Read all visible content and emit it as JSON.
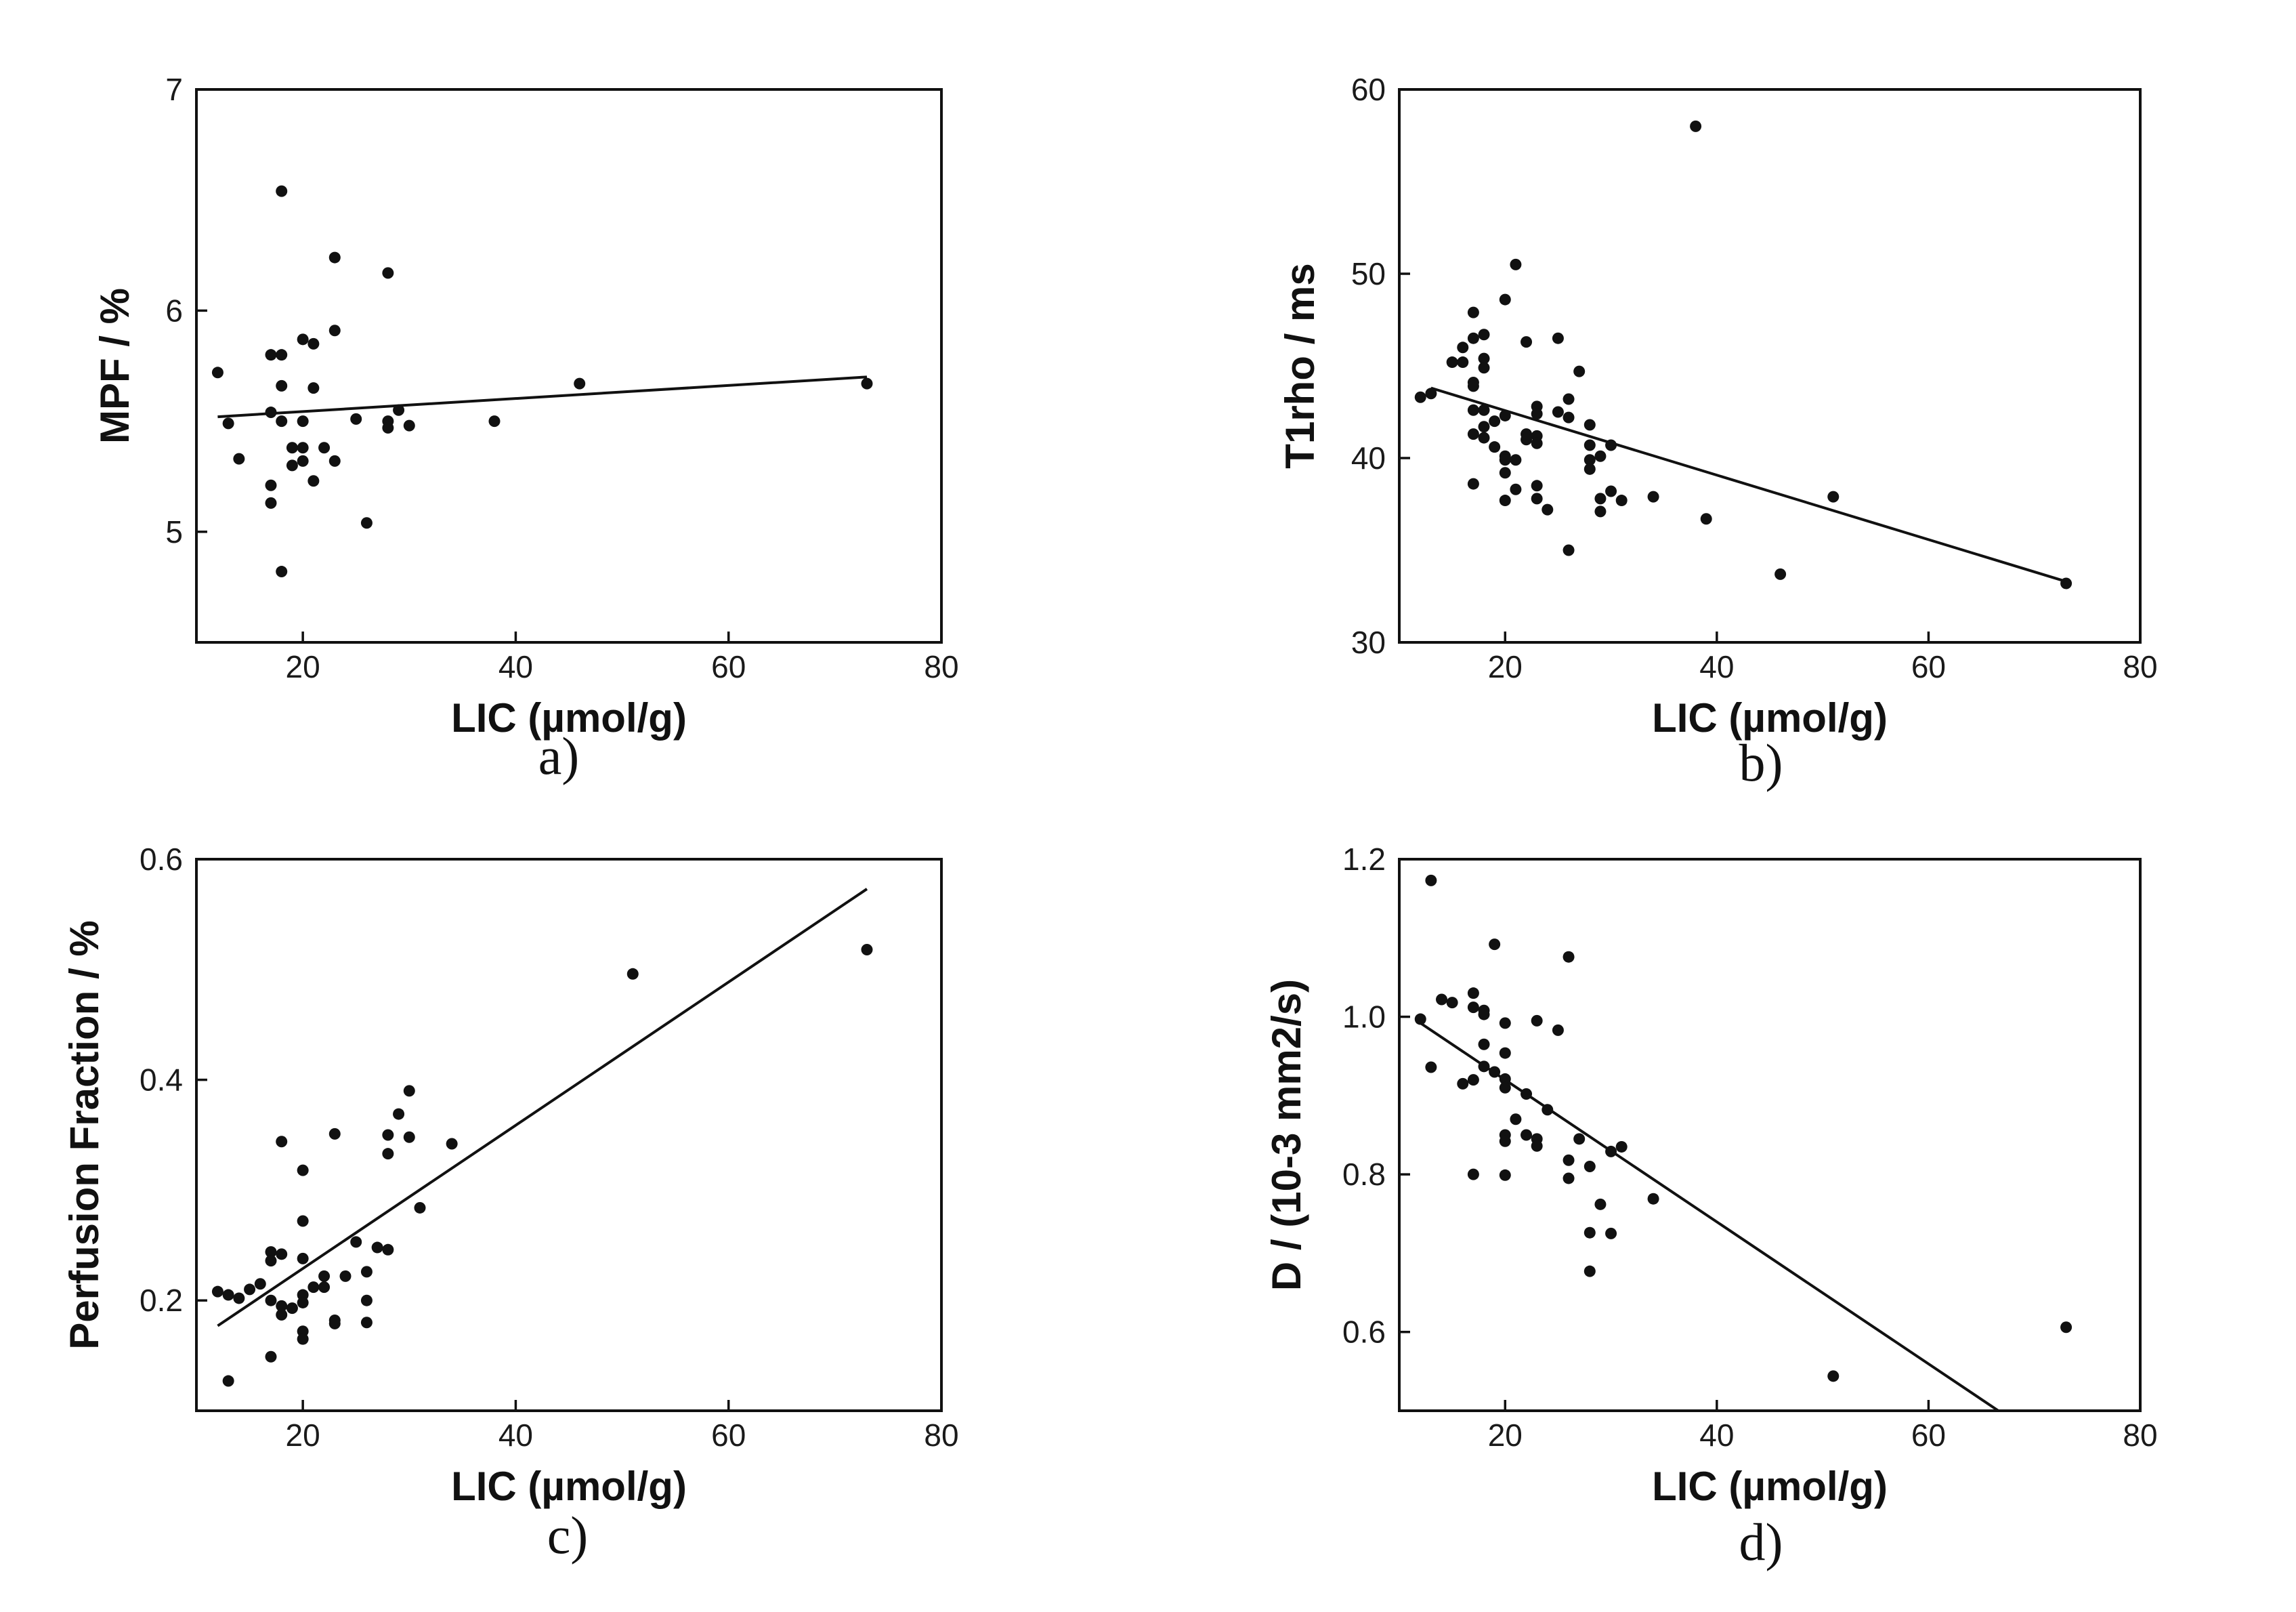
{
  "chart_data": [
    {
      "type": "scatter",
      "panel": "a)",
      "xlabel": "LIC (µmol/g)",
      "ylabel": "MPF / %",
      "xlim": [
        10,
        80
      ],
      "ylim": [
        4.5,
        7
      ],
      "xticks": [
        20,
        40,
        60,
        80
      ],
      "yticks": [
        5,
        6,
        7
      ],
      "points": [
        [
          12,
          5.72
        ],
        [
          13,
          5.49
        ],
        [
          14,
          5.33
        ],
        [
          17,
          5.54
        ],
        [
          17,
          5.21
        ],
        [
          17,
          5.13
        ],
        [
          17,
          5.8
        ],
        [
          18,
          6.54
        ],
        [
          18,
          5.8
        ],
        [
          18,
          5.66
        ],
        [
          18,
          5.5
        ],
        [
          18,
          4.82
        ],
        [
          19,
          5.38
        ],
        [
          19,
          5.3
        ],
        [
          20,
          5.87
        ],
        [
          20,
          5.5
        ],
        [
          20,
          5.38
        ],
        [
          20,
          5.32
        ],
        [
          21,
          5.85
        ],
        [
          21,
          5.65
        ],
        [
          21,
          5.23
        ],
        [
          22,
          5.38
        ],
        [
          23,
          6.24
        ],
        [
          23,
          5.91
        ],
        [
          23,
          5.32
        ],
        [
          25,
          5.51
        ],
        [
          26,
          5.04
        ],
        [
          28,
          6.17
        ],
        [
          28,
          5.5
        ],
        [
          28,
          5.47
        ],
        [
          29,
          5.55
        ],
        [
          30,
          5.48
        ],
        [
          38,
          5.5
        ],
        [
          46,
          5.67
        ],
        [
          73,
          5.67
        ]
      ],
      "fit": [
        [
          12,
          5.52
        ],
        [
          73,
          5.7
        ]
      ]
    },
    {
      "type": "scatter",
      "panel": "b)",
      "xlabel": "LIC (µmol/g)",
      "ylabel": "T1rho / ms",
      "xlim": [
        10,
        80
      ],
      "ylim": [
        30,
        60
      ],
      "xticks": [
        20,
        40,
        60,
        80
      ],
      "yticks": [
        30,
        40,
        50,
        60
      ],
      "points": [
        [
          12,
          43.3
        ],
        [
          13,
          43.5
        ],
        [
          15,
          45.2
        ],
        [
          16,
          46.0
        ],
        [
          16,
          45.2
        ],
        [
          17,
          47.9
        ],
        [
          17,
          46.5
        ],
        [
          17,
          44.1
        ],
        [
          17,
          43.9
        ],
        [
          17,
          42.6
        ],
        [
          17,
          41.3
        ],
        [
          17,
          38.6
        ],
        [
          18,
          46.7
        ],
        [
          18,
          45.4
        ],
        [
          18,
          44.9
        ],
        [
          18,
          42.6
        ],
        [
          18,
          41.7
        ],
        [
          18,
          41.1
        ],
        [
          19,
          42.0
        ],
        [
          19,
          40.6
        ],
        [
          20,
          48.6
        ],
        [
          20,
          42.3
        ],
        [
          20,
          40.1
        ],
        [
          20,
          39.9
        ],
        [
          20,
          39.2
        ],
        [
          20,
          37.7
        ],
        [
          21,
          50.5
        ],
        [
          21,
          39.9
        ],
        [
          21,
          38.3
        ],
        [
          22,
          46.3
        ],
        [
          22,
          41.3
        ],
        [
          22,
          41.0
        ],
        [
          23,
          42.8
        ],
        [
          23,
          42.4
        ],
        [
          23,
          41.2
        ],
        [
          23,
          40.8
        ],
        [
          23,
          38.5
        ],
        [
          23,
          37.8
        ],
        [
          24,
          37.2
        ],
        [
          25,
          46.5
        ],
        [
          25,
          42.5
        ],
        [
          26,
          43.2
        ],
        [
          26,
          42.2
        ],
        [
          26,
          35.0
        ],
        [
          27,
          44.7
        ],
        [
          28,
          41.8
        ],
        [
          28,
          40.7
        ],
        [
          28,
          39.9
        ],
        [
          28,
          39.4
        ],
        [
          29,
          40.1
        ],
        [
          29,
          37.8
        ],
        [
          29,
          37.1
        ],
        [
          30,
          40.7
        ],
        [
          30,
          38.2
        ],
        [
          31,
          37.7
        ],
        [
          34,
          37.9
        ],
        [
          38,
          58.0
        ],
        [
          39,
          36.7
        ],
        [
          46,
          33.7
        ],
        [
          51,
          37.9
        ],
        [
          73,
          33.2
        ]
      ],
      "fit": [
        [
          13,
          43.8
        ],
        [
          73,
          33.3
        ]
      ]
    },
    {
      "type": "scatter",
      "panel": "c)",
      "xlabel": "LIC (µmol/g)",
      "ylabel": "Perfusion Fraction / %",
      "xlim": [
        10,
        80
      ],
      "ylim": [
        0.1,
        0.6
      ],
      "xticks": [
        20,
        40,
        60,
        80
      ],
      "yticks": [
        0.2,
        0.4,
        0.6
      ],
      "points": [
        [
          12,
          0.208
        ],
        [
          13,
          0.205
        ],
        [
          13,
          0.127
        ],
        [
          14,
          0.202
        ],
        [
          15,
          0.21
        ],
        [
          16,
          0.215
        ],
        [
          17,
          0.244
        ],
        [
          17,
          0.236
        ],
        [
          17,
          0.2
        ],
        [
          17,
          0.149
        ],
        [
          18,
          0.344
        ],
        [
          18,
          0.242
        ],
        [
          18,
          0.195
        ],
        [
          18,
          0.187
        ],
        [
          19,
          0.193
        ],
        [
          20,
          0.318
        ],
        [
          20,
          0.272
        ],
        [
          20,
          0.238
        ],
        [
          20,
          0.205
        ],
        [
          20,
          0.198
        ],
        [
          20,
          0.172
        ],
        [
          20,
          0.165
        ],
        [
          21,
          0.212
        ],
        [
          22,
          0.222
        ],
        [
          22,
          0.212
        ],
        [
          23,
          0.351
        ],
        [
          23,
          0.182
        ],
        [
          23,
          0.179
        ],
        [
          24,
          0.222
        ],
        [
          25,
          0.253
        ],
        [
          26,
          0.226
        ],
        [
          26,
          0.2
        ],
        [
          26,
          0.18
        ],
        [
          27,
          0.248
        ],
        [
          28,
          0.35
        ],
        [
          28,
          0.333
        ],
        [
          28,
          0.246
        ],
        [
          29,
          0.369
        ],
        [
          30,
          0.39
        ],
        [
          30,
          0.348
        ],
        [
          31,
          0.284
        ],
        [
          34,
          0.342
        ],
        [
          51,
          0.496
        ],
        [
          73,
          0.518
        ]
      ],
      "fit": [
        [
          12,
          0.177
        ],
        [
          73,
          0.573
        ]
      ]
    },
    {
      "type": "scatter",
      "panel": "d)",
      "xlabel": "LIC (µmol/g)",
      "ylabel": "D / (10-3 mm2/s)",
      "xlim": [
        10,
        80
      ],
      "ylim": [
        0.5,
        1.2
      ],
      "xticks": [
        20,
        40,
        60,
        80
      ],
      "yticks": [
        0.6,
        0.8,
        1.0,
        1.2
      ],
      "points": [
        [
          12,
          0.997
        ],
        [
          13,
          1.173
        ],
        [
          13,
          0.936
        ],
        [
          14,
          1.022
        ],
        [
          15,
          1.018
        ],
        [
          16,
          0.915
        ],
        [
          17,
          1.03
        ],
        [
          17,
          1.012
        ],
        [
          17,
          0.92
        ],
        [
          17,
          0.8
        ],
        [
          18,
          1.008
        ],
        [
          18,
          1.003
        ],
        [
          18,
          0.965
        ],
        [
          18,
          0.937
        ],
        [
          19,
          1.092
        ],
        [
          19,
          0.93
        ],
        [
          20,
          0.992
        ],
        [
          20,
          0.954
        ],
        [
          20,
          0.921
        ],
        [
          20,
          0.91
        ],
        [
          20,
          0.85
        ],
        [
          20,
          0.842
        ],
        [
          20,
          0.799
        ],
        [
          21,
          0.87
        ],
        [
          22,
          0.902
        ],
        [
          22,
          0.85
        ],
        [
          23,
          0.995
        ],
        [
          23,
          0.845
        ],
        [
          23,
          0.836
        ],
        [
          24,
          0.882
        ],
        [
          25,
          0.983
        ],
        [
          26,
          1.076
        ],
        [
          26,
          0.818
        ],
        [
          26,
          0.795
        ],
        [
          27,
          0.845
        ],
        [
          28,
          0.81
        ],
        [
          28,
          0.726
        ],
        [
          28,
          0.677
        ],
        [
          29,
          0.762
        ],
        [
          30,
          0.829
        ],
        [
          30,
          0.725
        ],
        [
          31,
          0.835
        ],
        [
          34,
          0.769
        ],
        [
          51,
          0.544
        ],
        [
          73,
          0.606
        ]
      ],
      "fit": [
        [
          12,
          0.992
        ],
        [
          66.6,
          0.5
        ]
      ]
    }
  ]
}
